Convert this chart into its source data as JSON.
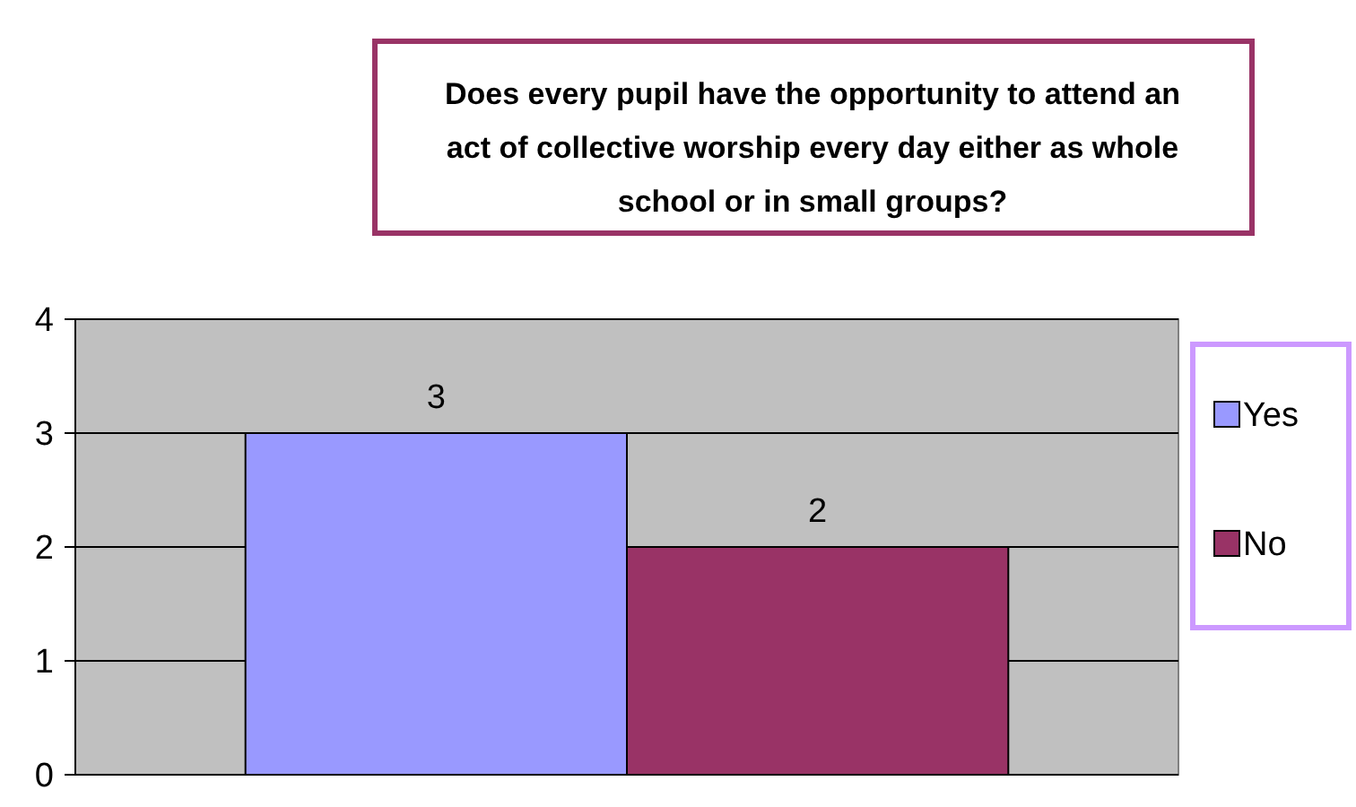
{
  "chart_data": {
    "type": "bar",
    "title": "Does every pupil have the opportunity to attend an act of collective worship every day either as whole school or in small groups?",
    "categories": [
      null
    ],
    "series": [
      {
        "name": "Yes",
        "color": "#9999ff",
        "values": [
          3
        ]
      },
      {
        "name": "No",
        "color": "#993366",
        "values": [
          2
        ]
      }
    ],
    "ylim": [
      0,
      4
    ],
    "yticks": [
      0,
      1,
      2,
      3,
      4
    ],
    "grid": "y",
    "legend": "right",
    "data_labels": true
  }
}
